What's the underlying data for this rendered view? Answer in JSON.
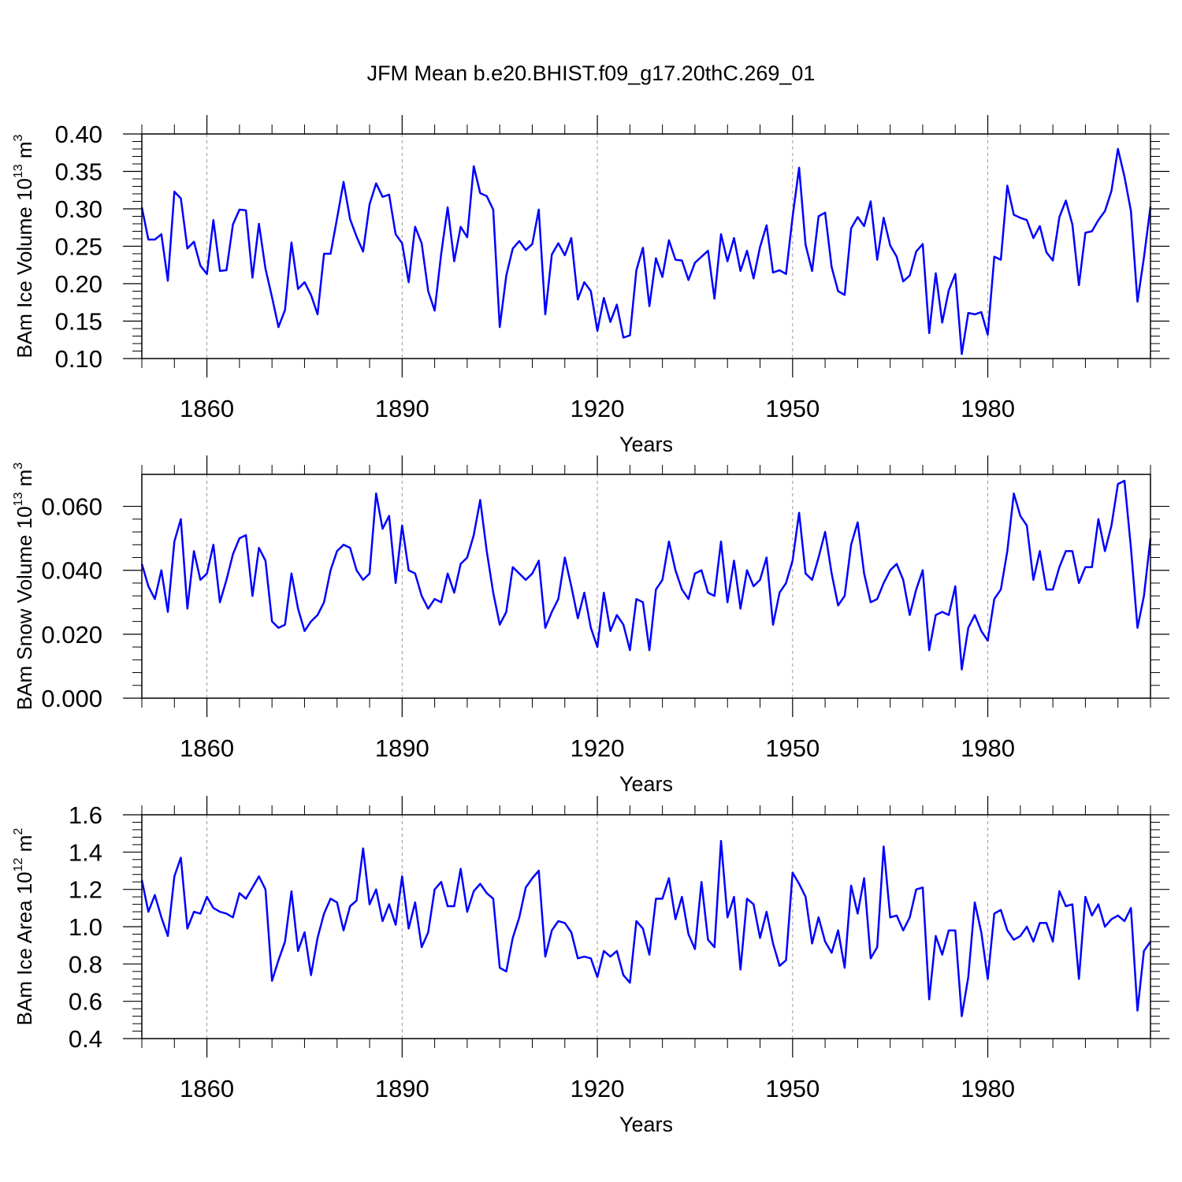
{
  "title": "JFM Mean b.e20.BHIST.f09_g17.20thC.269_01",
  "colors": {
    "line": "#0000ff",
    "axis": "#000000",
    "grid": "#999999"
  },
  "chart_data": [
    {
      "type": "line",
      "title": "JFM Mean b.e20.BHIST.f09_g17.20thC.269_01",
      "xlabel": "Years",
      "ylabel": "BAm Ice Volume 10",
      "ylabel_sup": "13",
      "ylabel_unit": "m",
      "ylabel_unit_sup": "3",
      "xlim": [
        1850,
        2005
      ],
      "ylim": [
        0.1,
        0.4
      ],
      "yticks": [
        0.1,
        0.15,
        0.2,
        0.25,
        0.3,
        0.35,
        0.4
      ],
      "ytick_labels": [
        "0.10",
        "0.15",
        "0.20",
        "0.25",
        "0.30",
        "0.35",
        "0.40"
      ],
      "xticks": [
        1860,
        1890,
        1920,
        1950,
        1980
      ],
      "xtick_labels": [
        "1860",
        "1890",
        "1920",
        "1950",
        "1980"
      ],
      "x_start": 1850,
      "series": [
        {
          "name": "BAm Ice Volume",
          "values": [
            0.302,
            0.259,
            0.259,
            0.266,
            0.204,
            0.323,
            0.314,
            0.247,
            0.256,
            0.224,
            0.213,
            0.285,
            0.217,
            0.218,
            0.279,
            0.299,
            0.298,
            0.208,
            0.28,
            0.22,
            0.182,
            0.142,
            0.165,
            0.255,
            0.193,
            0.202,
            0.185,
            0.159,
            0.24,
            0.24,
            0.287,
            0.336,
            0.286,
            0.263,
            0.243,
            0.306,
            0.334,
            0.316,
            0.319,
            0.266,
            0.254,
            0.202,
            0.276,
            0.254,
            0.19,
            0.164,
            0.24,
            0.302,
            0.23,
            0.276,
            0.262,
            0.357,
            0.321,
            0.317,
            0.299,
            0.142,
            0.211,
            0.247,
            0.257,
            0.245,
            0.253,
            0.299,
            0.159,
            0.239,
            0.254,
            0.238,
            0.261,
            0.179,
            0.202,
            0.19,
            0.137,
            0.181,
            0.149,
            0.172,
            0.128,
            0.131,
            0.218,
            0.248,
            0.17,
            0.234,
            0.209,
            0.258,
            0.232,
            0.231,
            0.205,
            0.228,
            0.236,
            0.244,
            0.18,
            0.266,
            0.23,
            0.261,
            0.217,
            0.244,
            0.207,
            0.249,
            0.278,
            0.215,
            0.218,
            0.213,
            0.289,
            0.355,
            0.252,
            0.217,
            0.29,
            0.295,
            0.222,
            0.19,
            0.185,
            0.274,
            0.289,
            0.277,
            0.31,
            0.232,
            0.288,
            0.251,
            0.236,
            0.203,
            0.211,
            0.243,
            0.253,
            0.134,
            0.214,
            0.148,
            0.191,
            0.213,
            0.106,
            0.161,
            0.159,
            0.162,
            0.132,
            0.236,
            0.232,
            0.331,
            0.292,
            0.288,
            0.285,
            0.261,
            0.277,
            0.242,
            0.231,
            0.289,
            0.311,
            0.279,
            0.198,
            0.268,
            0.27,
            0.285,
            0.297,
            0.324,
            0.38,
            0.343,
            0.297,
            0.176,
            0.235,
            0.303
          ]
        }
      ]
    },
    {
      "type": "line",
      "xlabel": "Years",
      "ylabel": "BAm Snow Volume 10",
      "ylabel_sup": "13",
      "ylabel_unit": "m",
      "ylabel_unit_sup": "3",
      "xlim": [
        1850,
        2005
      ],
      "ylim": [
        0.0,
        0.07
      ],
      "yticks": [
        0.0,
        0.02,
        0.04,
        0.06
      ],
      "ytick_labels": [
        "0.000",
        "0.020",
        "0.040",
        "0.060"
      ],
      "xticks": [
        1860,
        1890,
        1920,
        1950,
        1980
      ],
      "xtick_labels": [
        "1860",
        "1890",
        "1920",
        "1950",
        "1980"
      ],
      "x_start": 1850,
      "series": [
        {
          "name": "BAm Snow Volume",
          "values": [
            0.042,
            0.035,
            0.031,
            0.04,
            0.027,
            0.049,
            0.056,
            0.028,
            0.046,
            0.037,
            0.039,
            0.048,
            0.03,
            0.037,
            0.045,
            0.05,
            0.051,
            0.032,
            0.047,
            0.043,
            0.024,
            0.022,
            0.023,
            0.039,
            0.028,
            0.021,
            0.024,
            0.026,
            0.03,
            0.04,
            0.046,
            0.048,
            0.047,
            0.04,
            0.037,
            0.039,
            0.064,
            0.053,
            0.057,
            0.036,
            0.054,
            0.04,
            0.039,
            0.032,
            0.028,
            0.031,
            0.03,
            0.039,
            0.033,
            0.042,
            0.044,
            0.051,
            0.062,
            0.046,
            0.033,
            0.023,
            0.027,
            0.041,
            0.039,
            0.037,
            0.039,
            0.043,
            0.022,
            0.027,
            0.031,
            0.044,
            0.035,
            0.025,
            0.033,
            0.022,
            0.016,
            0.033,
            0.021,
            0.026,
            0.023,
            0.015,
            0.031,
            0.03,
            0.015,
            0.034,
            0.037,
            0.049,
            0.04,
            0.034,
            0.031,
            0.039,
            0.04,
            0.033,
            0.032,
            0.049,
            0.03,
            0.043,
            0.028,
            0.04,
            0.035,
            0.037,
            0.044,
            0.023,
            0.033,
            0.036,
            0.043,
            0.058,
            0.039,
            0.037,
            0.044,
            0.052,
            0.039,
            0.029,
            0.032,
            0.048,
            0.055,
            0.039,
            0.03,
            0.031,
            0.036,
            0.04,
            0.042,
            0.037,
            0.026,
            0.034,
            0.04,
            0.015,
            0.026,
            0.027,
            0.026,
            0.035,
            0.009,
            0.022,
            0.026,
            0.021,
            0.018,
            0.031,
            0.034,
            0.046,
            0.064,
            0.057,
            0.054,
            0.037,
            0.046,
            0.034,
            0.034,
            0.041,
            0.046,
            0.046,
            0.036,
            0.041,
            0.041,
            0.056,
            0.046,
            0.054,
            0.067,
            0.068,
            0.047,
            0.022,
            0.032,
            0.05
          ]
        }
      ]
    },
    {
      "type": "line",
      "xlabel": "Years",
      "ylabel": "BAm Ice Area 10",
      "ylabel_sup": "12",
      "ylabel_unit": "m",
      "ylabel_unit_sup": "2",
      "xlim": [
        1850,
        2005
      ],
      "ylim": [
        0.4,
        1.6
      ],
      "yticks": [
        0.4,
        0.6,
        0.8,
        1.0,
        1.2,
        1.4,
        1.6
      ],
      "ytick_labels": [
        "0.4",
        "0.6",
        "0.8",
        "1.0",
        "1.2",
        "1.4",
        "1.6"
      ],
      "xticks": [
        1860,
        1890,
        1920,
        1950,
        1980
      ],
      "xtick_labels": [
        "1860",
        "1890",
        "1920",
        "1950",
        "1980"
      ],
      "x_start": 1850,
      "series": [
        {
          "name": "BAm Ice Area",
          "values": [
            1.25,
            1.08,
            1.17,
            1.05,
            0.95,
            1.27,
            1.37,
            0.99,
            1.08,
            1.07,
            1.16,
            1.1,
            1.08,
            1.07,
            1.05,
            1.18,
            1.15,
            1.21,
            1.27,
            1.2,
            0.71,
            0.82,
            0.92,
            1.19,
            0.87,
            0.97,
            0.74,
            0.94,
            1.07,
            1.15,
            1.13,
            0.98,
            1.11,
            1.14,
            1.42,
            1.12,
            1.2,
            1.03,
            1.12,
            1.01,
            1.27,
            0.99,
            1.13,
            0.89,
            0.97,
            1.2,
            1.24,
            1.11,
            1.11,
            1.31,
            1.08,
            1.19,
            1.23,
            1.18,
            1.15,
            0.78,
            0.76,
            0.94,
            1.05,
            1.21,
            1.26,
            1.3,
            0.84,
            0.98,
            1.03,
            1.02,
            0.97,
            0.83,
            0.84,
            0.83,
            0.73,
            0.87,
            0.84,
            0.87,
            0.74,
            0.7,
            1.03,
            0.99,
            0.85,
            1.15,
            1.15,
            1.26,
            1.04,
            1.16,
            0.96,
            0.88,
            1.24,
            0.93,
            0.89,
            1.46,
            1.05,
            1.16,
            0.77,
            1.15,
            1.12,
            0.94,
            1.08,
            0.91,
            0.79,
            0.82,
            1.29,
            1.23,
            1.16,
            0.91,
            1.05,
            0.92,
            0.86,
            0.98,
            0.78,
            1.22,
            1.07,
            1.26,
            0.83,
            0.89,
            1.43,
            1.05,
            1.06,
            0.98,
            1.05,
            1.2,
            1.21,
            0.61,
            0.95,
            0.85,
            0.98,
            0.98,
            0.52,
            0.73,
            1.13,
            0.97,
            0.72,
            1.07,
            1.09,
            0.98,
            0.93,
            0.95,
            1.0,
            0.92,
            1.02,
            1.02,
            0.92,
            1.19,
            1.11,
            1.12,
            0.72,
            1.16,
            1.06,
            1.12,
            1.0,
            1.04,
            1.06,
            1.03,
            1.1,
            0.55,
            0.87,
            0.92
          ]
        }
      ]
    }
  ]
}
